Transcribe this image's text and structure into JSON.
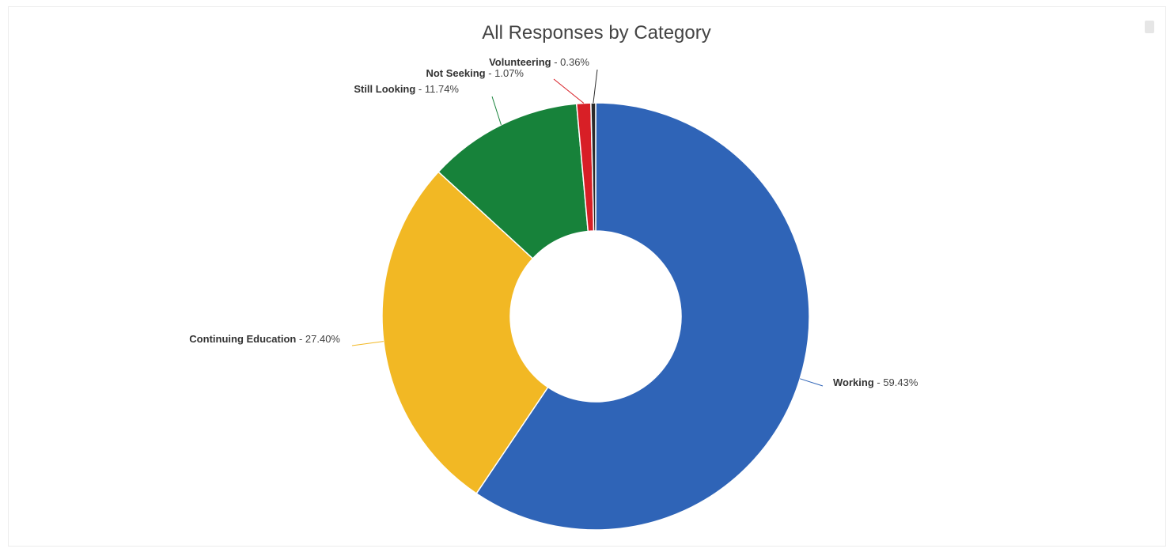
{
  "chart_data": {
    "type": "pie",
    "title": "All Responses by Category",
    "donut": true,
    "slices": [
      {
        "name": "Working",
        "value": 59.43,
        "pct_label": "59.43%",
        "color": "#2f64b7"
      },
      {
        "name": "Continuing Education",
        "value": 27.4,
        "pct_label": "27.40%",
        "color": "#f2b824"
      },
      {
        "name": "Still Looking",
        "value": 11.74,
        "pct_label": "11.74%",
        "color": "#17823a"
      },
      {
        "name": "Not Seeking",
        "value": 1.07,
        "pct_label": "1.07%",
        "color": "#d81f26"
      },
      {
        "name": "Volunteering",
        "value": 0.36,
        "pct_label": "0.36%",
        "color": "#2b2b2b"
      }
    ],
    "label_separator": " - "
  },
  "icons": {
    "menu": "hamburger-menu-icon"
  }
}
